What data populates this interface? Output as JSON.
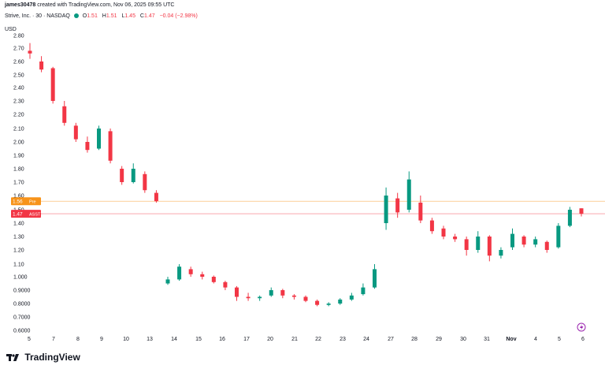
{
  "header": {
    "user": "james30478",
    "text": "created with TradingView.com, Nov 06, 2025 09:55 UTC"
  },
  "legend": {
    "title": "Strive, Inc. · 30 · NASDAQ",
    "o_label": "O",
    "o_value": "1.51",
    "h_label": "H",
    "h_value": "1.51",
    "l_label": "L",
    "l_value": "1.45",
    "c_label": "C",
    "c_value": "1.47",
    "change": "−0.04 (−2.98%)"
  },
  "footer": {
    "brand": "TradingView"
  },
  "colors": {
    "up": "#089981",
    "down": "#f23645",
    "orange": "#f7931a"
  },
  "chart_data": {
    "type": "candlestick",
    "currency_label": "USD",
    "y_ticks": [
      "2.80",
      "2.70",
      "2.60",
      "2.50",
      "2.40",
      "2.30",
      "2.20",
      "2.10",
      "2.00",
      "1.90",
      "1.80",
      "1.70",
      "1.60",
      "1.50",
      "1.40",
      "1.30",
      "1.20",
      "1.10",
      "1.000",
      "0.9000",
      "0.8000",
      "0.7000",
      "0.6000"
    ],
    "x_ticks": [
      "5",
      "7",
      "8",
      "9",
      "10",
      "13",
      "14",
      "15",
      "16",
      "17",
      "20",
      "21",
      "22",
      "23",
      "24",
      "27",
      "28",
      "29",
      "30",
      "31",
      "Nov",
      "4",
      "5",
      "6"
    ],
    "price_labels": [
      {
        "value": "1.56",
        "tag": "Pre",
        "color": "#f7931a"
      },
      {
        "value": "1.47",
        "tag": "ASST",
        "color": "#f23645"
      }
    ],
    "candles": [
      {
        "x": "5",
        "o": 2.68,
        "h": 2.74,
        "l": 2.62,
        "c": 2.66
      },
      {
        "x": "6",
        "o": 2.6,
        "h": 2.64,
        "l": 2.52,
        "c": 2.54
      },
      {
        "x": "7",
        "o": 2.55,
        "h": 2.56,
        "l": 2.28,
        "c": 2.3
      },
      {
        "x": "7b",
        "o": 2.26,
        "h": 2.3,
        "l": 2.12,
        "c": 2.14
      },
      {
        "x": "8",
        "o": 2.12,
        "h": 2.14,
        "l": 2.0,
        "c": 2.02
      },
      {
        "x": "8b",
        "o": 2.0,
        "h": 2.04,
        "l": 1.92,
        "c": 1.94
      },
      {
        "x": "9",
        "o": 1.95,
        "h": 2.12,
        "l": 1.94,
        "c": 2.1
      },
      {
        "x": "9b",
        "o": 2.08,
        "h": 2.1,
        "l": 1.84,
        "c": 1.86
      },
      {
        "x": "10",
        "o": 1.8,
        "h": 1.82,
        "l": 1.68,
        "c": 1.7
      },
      {
        "x": "10b",
        "o": 1.7,
        "h": 1.84,
        "l": 1.69,
        "c": 1.8
      },
      {
        "x": "10c",
        "o": 1.76,
        "h": 1.78,
        "l": 1.62,
        "c": 1.64
      },
      {
        "x": "13",
        "o": 1.62,
        "h": 1.64,
        "l": 1.55,
        "c": 1.56
      },
      {
        "x": "13b",
        "o": 0.95,
        "h": 1.0,
        "l": 0.94,
        "c": 0.98
      },
      {
        "x": "14",
        "o": 0.98,
        "h": 1.1,
        "l": 0.97,
        "c": 1.08
      },
      {
        "x": "14b",
        "o": 1.06,
        "h": 1.08,
        "l": 1.0,
        "c": 1.02
      },
      {
        "x": "15",
        "o": 1.02,
        "h": 1.04,
        "l": 0.98,
        "c": 1.0
      },
      {
        "x": "15b",
        "o": 1.0,
        "h": 1.01,
        "l": 0.95,
        "c": 0.96
      },
      {
        "x": "16",
        "o": 0.96,
        "h": 0.97,
        "l": 0.9,
        "c": 0.92
      },
      {
        "x": "16b",
        "o": 0.92,
        "h": 0.93,
        "l": 0.82,
        "c": 0.85
      },
      {
        "x": "17",
        "o": 0.85,
        "h": 0.88,
        "l": 0.82,
        "c": 0.84
      },
      {
        "x": "17b",
        "o": 0.84,
        "h": 0.86,
        "l": 0.82,
        "c": 0.85
      },
      {
        "x": "20",
        "o": 0.86,
        "h": 0.92,
        "l": 0.85,
        "c": 0.9
      },
      {
        "x": "20b",
        "o": 0.9,
        "h": 0.91,
        "l": 0.84,
        "c": 0.86
      },
      {
        "x": "21",
        "o": 0.86,
        "h": 0.87,
        "l": 0.83,
        "c": 0.85
      },
      {
        "x": "21b",
        "o": 0.85,
        "h": 0.86,
        "l": 0.81,
        "c": 0.82
      },
      {
        "x": "22",
        "o": 0.82,
        "h": 0.83,
        "l": 0.78,
        "c": 0.79
      },
      {
        "x": "22b",
        "o": 0.79,
        "h": 0.81,
        "l": 0.78,
        "c": 0.8
      },
      {
        "x": "23",
        "o": 0.8,
        "h": 0.84,
        "l": 0.79,
        "c": 0.83
      },
      {
        "x": "23b",
        "o": 0.83,
        "h": 0.88,
        "l": 0.82,
        "c": 0.86
      },
      {
        "x": "24",
        "o": 0.87,
        "h": 0.95,
        "l": 0.86,
        "c": 0.92
      },
      {
        "x": "24b",
        "o": 0.92,
        "h": 1.1,
        "l": 0.91,
        "c": 1.06
      },
      {
        "x": "27",
        "o": 1.4,
        "h": 1.66,
        "l": 1.35,
        "c": 1.6
      },
      {
        "x": "27b",
        "o": 1.58,
        "h": 1.62,
        "l": 1.44,
        "c": 1.48
      },
      {
        "x": "27c",
        "o": 1.5,
        "h": 1.78,
        "l": 1.48,
        "c": 1.72
      },
      {
        "x": "28",
        "o": 1.55,
        "h": 1.6,
        "l": 1.4,
        "c": 1.42
      },
      {
        "x": "28b",
        "o": 1.42,
        "h": 1.44,
        "l": 1.32,
        "c": 1.34
      },
      {
        "x": "29",
        "o": 1.36,
        "h": 1.38,
        "l": 1.28,
        "c": 1.3
      },
      {
        "x": "29b",
        "o": 1.3,
        "h": 1.32,
        "l": 1.26,
        "c": 1.28
      },
      {
        "x": "30",
        "o": 1.28,
        "h": 1.3,
        "l": 1.16,
        "c": 1.2
      },
      {
        "x": "30b",
        "o": 1.2,
        "h": 1.34,
        "l": 1.18,
        "c": 1.3
      },
      {
        "x": "31",
        "o": 1.3,
        "h": 1.31,
        "l": 1.12,
        "c": 1.16
      },
      {
        "x": "31b",
        "o": 1.16,
        "h": 1.22,
        "l": 1.14,
        "c": 1.2
      },
      {
        "x": "Nov",
        "o": 1.22,
        "h": 1.36,
        "l": 1.2,
        "c": 1.32
      },
      {
        "x": "Novb",
        "o": 1.3,
        "h": 1.31,
        "l": 1.22,
        "c": 1.24
      },
      {
        "x": "4",
        "o": 1.24,
        "h": 1.3,
        "l": 1.22,
        "c": 1.28
      },
      {
        "x": "4b",
        "o": 1.26,
        "h": 1.27,
        "l": 1.18,
        "c": 1.2
      },
      {
        "x": "5",
        "o": 1.22,
        "h": 1.4,
        "l": 1.21,
        "c": 1.38
      },
      {
        "x": "5b",
        "o": 1.38,
        "h": 1.52,
        "l": 1.37,
        "c": 1.5
      },
      {
        "x": "6",
        "o": 1.51,
        "h": 1.51,
        "l": 1.45,
        "c": 1.47
      }
    ]
  }
}
